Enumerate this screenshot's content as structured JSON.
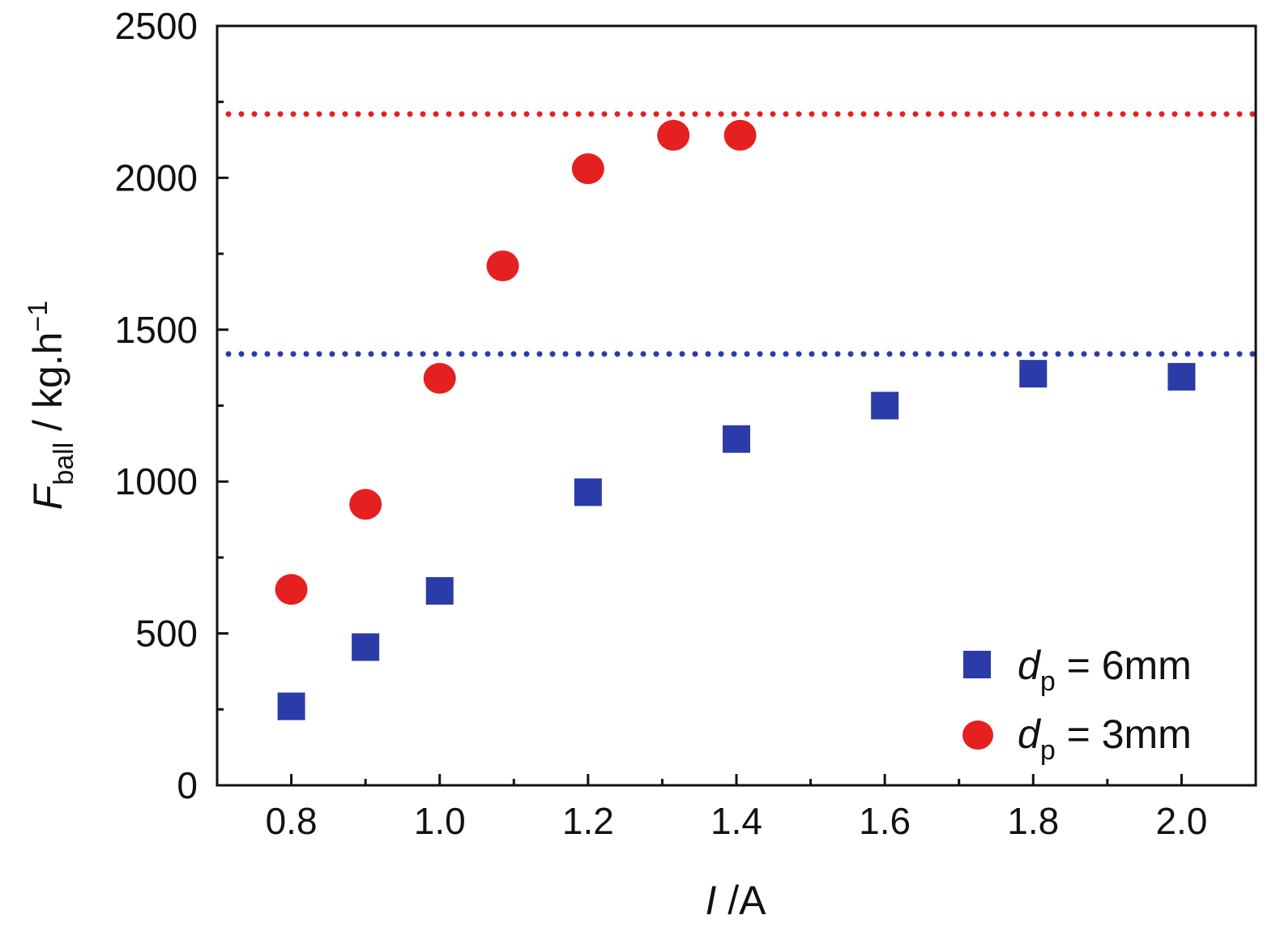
{
  "chart_data": {
    "type": "scatter",
    "x_axis": {
      "label_italic": "I",
      "label_rest": " /A",
      "range": [
        0.7,
        2.1
      ],
      "ticks": [
        0.8,
        1.0,
        1.2,
        1.4,
        1.6,
        1.8,
        2.0
      ],
      "tick_labels": [
        "0.8",
        "1.0",
        "1.2",
        "1.4",
        "1.6",
        "1.8",
        "2.0"
      ],
      "minor_ticks": [
        0.9,
        1.1,
        1.3,
        1.5,
        1.7,
        1.9
      ]
    },
    "y_axis": {
      "label_italic": "F",
      "label_subscript": "ball",
      "label_rest": " / kg.h",
      "label_superscript": "−1",
      "range": [
        0,
        2500
      ],
      "ticks": [
        0,
        500,
        1000,
        1500,
        2000,
        2500
      ],
      "tick_labels": [
        "0",
        "500",
        "1000",
        "1500",
        "2000",
        "2500"
      ],
      "minor_ticks": [
        250,
        750,
        1250,
        1750,
        2250
      ]
    },
    "series": [
      {
        "name": "dp = 6mm",
        "legend_italic": "d",
        "legend_sub": "p",
        "legend_rest": " = 6mm",
        "marker": "square",
        "color": "#2b3ba7",
        "x": [
          0.8,
          0.9,
          1.0,
          1.2,
          1.4,
          1.6,
          1.8,
          2.0
        ],
        "y": [
          260,
          455,
          640,
          965,
          1140,
          1250,
          1355,
          1345
        ]
      },
      {
        "name": "dp = 3mm",
        "legend_italic": "d",
        "legend_sub": "p",
        "legend_rest": " = 3mm",
        "marker": "circle",
        "color": "#e52020",
        "x": [
          0.8,
          0.9,
          1.0,
          1.085,
          1.2,
          1.315,
          1.405
        ],
        "y": [
          645,
          925,
          1340,
          1710,
          2030,
          2140,
          2140
        ]
      }
    ],
    "reference_lines": [
      {
        "name": "max-3mm",
        "y": 2210,
        "color": "#e52020",
        "style": "dotted"
      },
      {
        "name": "max-6mm",
        "y": 1420,
        "color": "#2b3ba7",
        "style": "dotted"
      }
    ],
    "legend_position": "bottom-right",
    "grid": false
  }
}
